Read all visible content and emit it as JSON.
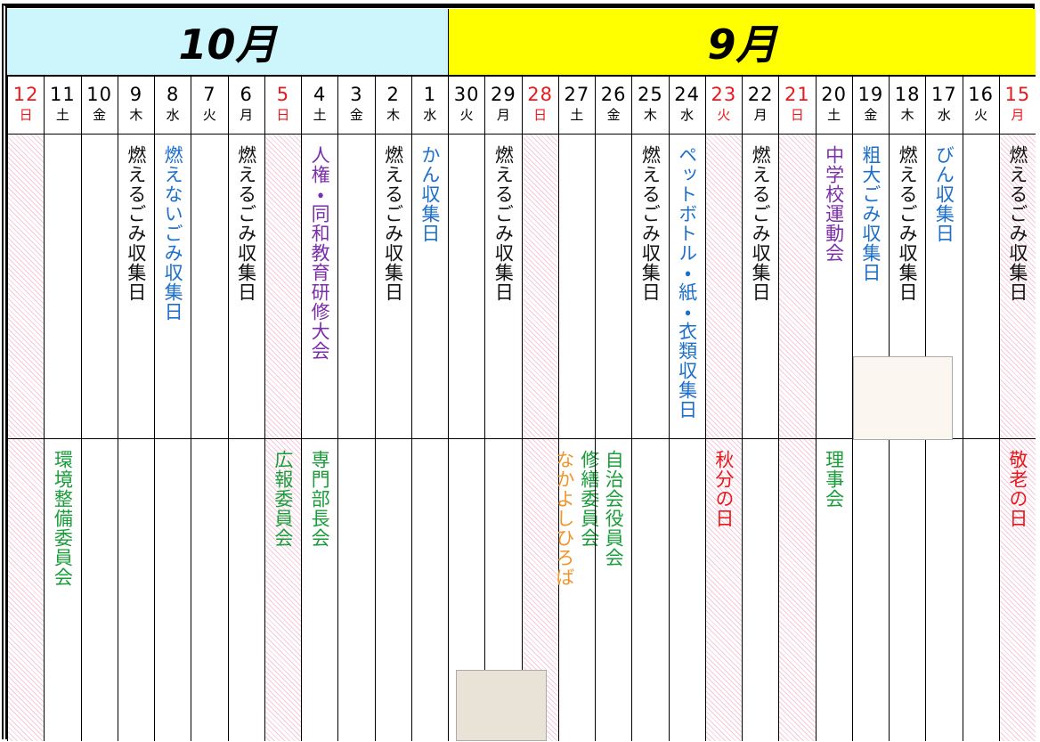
{
  "months": [
    {
      "label": "10月"
    },
    {
      "label": "9月"
    }
  ],
  "days": [
    {
      "day": "12",
      "weekday": "日",
      "holiday": true,
      "top": [],
      "bottom": []
    },
    {
      "day": "11",
      "weekday": "土",
      "holiday": false,
      "top": [],
      "bottom": [
        {
          "text": "環境整備委員会",
          "color": "#1a9c3a"
        }
      ]
    },
    {
      "day": "10",
      "weekday": "金",
      "holiday": false,
      "top": [],
      "bottom": []
    },
    {
      "day": "9",
      "weekday": "木",
      "holiday": false,
      "top": [
        {
          "text": "燃えるごみ収集日",
          "color": "#111111"
        }
      ],
      "bottom": []
    },
    {
      "day": "8",
      "weekday": "水",
      "holiday": false,
      "top": [
        {
          "text": "燃えないごみ収集日",
          "color": "#1e6fc8"
        }
      ],
      "bottom": []
    },
    {
      "day": "7",
      "weekday": "火",
      "holiday": false,
      "top": [],
      "bottom": []
    },
    {
      "day": "6",
      "weekday": "月",
      "holiday": false,
      "top": [
        {
          "text": "燃えるごみ収集日",
          "color": "#111111"
        }
      ],
      "bottom": []
    },
    {
      "day": "5",
      "weekday": "日",
      "holiday": true,
      "top": [],
      "bottom": [
        {
          "text": "広報委員会",
          "color": "#1a9c3a"
        }
      ]
    },
    {
      "day": "4",
      "weekday": "土",
      "holiday": false,
      "top": [
        {
          "text": "人権・同和教育研修大会",
          "color": "#7b2fa8"
        }
      ],
      "bottom": [
        {
          "text": "専門部長会",
          "color": "#1a9c3a"
        }
      ]
    },
    {
      "day": "3",
      "weekday": "金",
      "holiday": false,
      "top": [],
      "bottom": []
    },
    {
      "day": "2",
      "weekday": "木",
      "holiday": false,
      "top": [
        {
          "text": "燃えるごみ収集日",
          "color": "#111111"
        }
      ],
      "bottom": []
    },
    {
      "day": "1",
      "weekday": "水",
      "holiday": false,
      "top": [
        {
          "text": "かん収集日",
          "color": "#1e6fc8"
        }
      ],
      "bottom": []
    },
    {
      "day": "30",
      "weekday": "火",
      "holiday": false,
      "top": [],
      "bottom": []
    },
    {
      "day": "29",
      "weekday": "月",
      "holiday": false,
      "top": [
        {
          "text": "燃えるごみ収集日",
          "color": "#111111"
        }
      ],
      "bottom": []
    },
    {
      "day": "28",
      "weekday": "日",
      "holiday": true,
      "top": [],
      "bottom": []
    },
    {
      "day": "27",
      "weekday": "土",
      "holiday": false,
      "top": [],
      "bottom": [
        {
          "text": "修繕委員会",
          "color": "#1a9c3a"
        },
        {
          "text": "なかよしひろば",
          "color": "#f0952a"
        }
      ]
    },
    {
      "day": "26",
      "weekday": "金",
      "holiday": false,
      "top": [],
      "bottom": [
        {
          "text": "自治会役員会",
          "color": "#1a9c3a"
        }
      ]
    },
    {
      "day": "25",
      "weekday": "木",
      "holiday": false,
      "top": [
        {
          "text": "燃えるごみ収集日",
          "color": "#111111"
        }
      ],
      "bottom": []
    },
    {
      "day": "24",
      "weekday": "水",
      "holiday": false,
      "top": [
        {
          "text": "ペットボトル・紙・衣類収集日",
          "color": "#1e6fc8"
        }
      ],
      "bottom": []
    },
    {
      "day": "23",
      "weekday": "火",
      "holiday": true,
      "top": [],
      "bottom": [
        {
          "text": "秋分の日",
          "color": "#e8191c"
        }
      ]
    },
    {
      "day": "22",
      "weekday": "月",
      "holiday": false,
      "top": [
        {
          "text": "燃えるごみ収集日",
          "color": "#111111"
        }
      ],
      "bottom": []
    },
    {
      "day": "21",
      "weekday": "日",
      "holiday": true,
      "top": [],
      "bottom": []
    },
    {
      "day": "20",
      "weekday": "土",
      "holiday": false,
      "top": [
        {
          "text": "中学校運動会",
          "color": "#7b2fa8"
        }
      ],
      "bottom": [
        {
          "text": "理事会",
          "color": "#1a9c3a"
        }
      ]
    },
    {
      "day": "19",
      "weekday": "金",
      "holiday": false,
      "top": [
        {
          "text": "粗大ごみ収集日",
          "color": "#1e6fc8"
        }
      ],
      "bottom": []
    },
    {
      "day": "18",
      "weekday": "木",
      "holiday": false,
      "top": [
        {
          "text": "燃えるごみ収集日",
          "color": "#111111"
        }
      ],
      "bottom": []
    },
    {
      "day": "17",
      "weekday": "水",
      "holiday": false,
      "top": [
        {
          "text": "びん収集日",
          "color": "#1e6fc8"
        }
      ],
      "bottom": []
    },
    {
      "day": "16",
      "weekday": "火",
      "holiday": false,
      "top": [],
      "bottom": []
    },
    {
      "day": "15",
      "weekday": "月",
      "holiday": true,
      "top": [
        {
          "text": "燃えるごみ収集日",
          "color": "#111111"
        }
      ],
      "bottom": [
        {
          "text": "敬老の日",
          "color": "#e8191c"
        }
      ]
    }
  ]
}
